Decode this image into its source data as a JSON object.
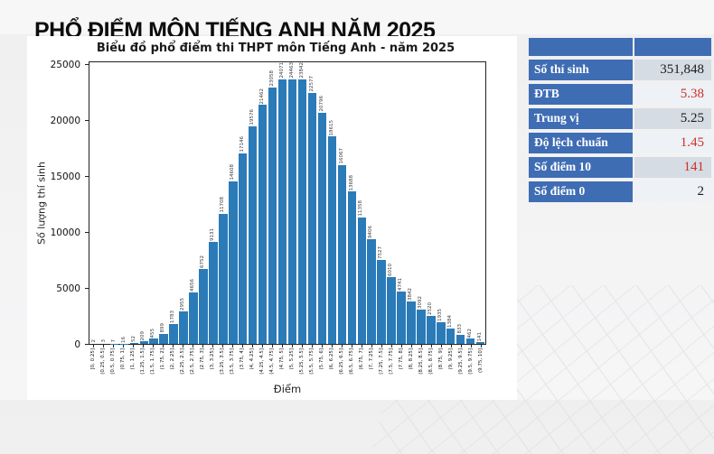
{
  "page": {
    "title": "PHỔ ĐIỂM MÔN TIẾNG ANH NĂM 2025"
  },
  "colors": {
    "bar": "#2b7bb9",
    "table_blue": "#3f6db4",
    "value_red": "#cf2f27",
    "value_black": "#1b1b1b",
    "row_bg_odd": "#d6dce4",
    "row_bg_even": "#eef1f6"
  },
  "chart_data": {
    "type": "bar",
    "title": "Biểu đồ phổ điểm thi THPT môn Tiếng Anh - năm 2025",
    "xlabel": "Điểm",
    "ylabel": "Số lượng thí sinh",
    "ylim": [
      0,
      25300
    ],
    "yticks": [
      0,
      5000,
      10000,
      15000,
      20000,
      25000
    ],
    "grid": false,
    "legend": "none",
    "categories": [
      "[0, 0.25]",
      "(0.25, 0.5]",
      "(0.5, 0.75]",
      "(0.75, 1]",
      "(1, 1.25]",
      "(1.25, 1.5]",
      "(1.5, 1.75]",
      "(1.75, 2]",
      "(2, 2.25]",
      "(2.25, 2.5]",
      "(2.5, 2.75]",
      "(2.75, 3]",
      "(3, 3.25]",
      "(3.25, 3.5]",
      "(3.5, 3.75]",
      "(3.75, 4]",
      "(4, 4.25]",
      "(4.25, 4.5]",
      "(4.5, 4.75]",
      "(4.75, 5]",
      "(5, 5.25]",
      "(5.25, 5.5]",
      "(5.5, 5.75]",
      "(5.75, 6]",
      "(6, 6.25]",
      "(6.25, 6.5]",
      "(6.5, 6.75]",
      "(6.75, 7]",
      "(7, 7.25]",
      "(7.25, 7.5]",
      "(7.5, 7.75]",
      "(7.75, 8]",
      "(8, 8.25]",
      "(8.25, 8.5]",
      "(8.5, 8.75]",
      "(8.75, 9]",
      "(9, 9.25]",
      "(9.25, 9.5]",
      "(9.5, 9.75]",
      "(9.75, 10]"
    ],
    "values": [
      2,
      3,
      7,
      16,
      52,
      209,
      455,
      899,
      1783,
      2955,
      4656,
      6752,
      9131,
      11708,
      14608,
      17146,
      19576,
      21462,
      23058,
      24071,
      24463,
      23842,
      22577,
      20796,
      18615,
      16067,
      13688,
      11358,
      9406,
      7527,
      6010,
      4741,
      3842,
      3092,
      2520,
      1935,
      1384,
      833,
      462,
      141
    ]
  },
  "stats_table": {
    "header": {
      "label": "",
      "value": ""
    },
    "rows": [
      {
        "label": "Số thí sinh",
        "value": "351,848",
        "red": false
      },
      {
        "label": "ĐTB",
        "value": "5.38",
        "red": true
      },
      {
        "label": "Trung vị",
        "value": "5.25",
        "red": false
      },
      {
        "label": "Độ lệch chuẩn",
        "value": "1.45",
        "red": true
      },
      {
        "label": "Số điểm 10",
        "value": "141",
        "red": true
      },
      {
        "label": "Số điểm 0",
        "value": "2",
        "red": false
      }
    ]
  }
}
